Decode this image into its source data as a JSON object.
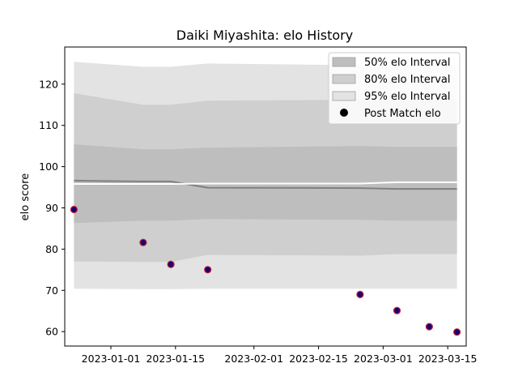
{
  "chart_data": {
    "type": "line",
    "title": "Daiki Miyashita: elo History",
    "xlabel": "",
    "ylabel": "elo score",
    "x_dates": [
      "2022-12-24",
      "2023-01-08",
      "2023-01-14",
      "2023-01-22",
      "2023-02-24",
      "2023-03-04",
      "2023-03-11",
      "2023-03-17"
    ],
    "xlim": [
      "2022-12-22",
      "2023-03-19"
    ],
    "ylim": [
      56.5,
      129
    ],
    "x_ticks": [
      "2023-01-01",
      "2023-01-15",
      "2023-02-01",
      "2023-02-15",
      "2023-03-01",
      "2023-03-15"
    ],
    "y_ticks": [
      60,
      70,
      80,
      90,
      100,
      110,
      120
    ],
    "bands": [
      {
        "name": "95% elo Interval",
        "color": "#e3e3e3",
        "lower": [
          70.4,
          70.3,
          70.3,
          70.4,
          70.4,
          70.4,
          70.4,
          70.4
        ],
        "upper": [
          125.4,
          124.2,
          124.2,
          125.0,
          124.6,
          124.6,
          124.6,
          124.6
        ]
      },
      {
        "name": "80% elo Interval",
        "color": "#cfcfcf",
        "lower": [
          77.0,
          76.9,
          76.9,
          78.6,
          78.4,
          78.8,
          78.8,
          78.8
        ],
        "upper": [
          117.8,
          115.0,
          115.0,
          116.0,
          116.2,
          116.2,
          116.2,
          116.2
        ]
      },
      {
        "name": "50% elo Interval",
        "color": "#bebebe",
        "lower": [
          86.3,
          86.9,
          86.9,
          87.3,
          87.1,
          86.9,
          86.9,
          86.9
        ],
        "upper": [
          105.4,
          104.2,
          104.2,
          104.6,
          105.0,
          104.8,
          104.8,
          104.8
        ]
      }
    ],
    "series": [
      {
        "values": [
          96.6,
          96.4,
          96.4,
          94.9,
          94.8,
          94.6,
          94.6,
          94.6
        ],
        "color": "#808080"
      },
      {
        "values": [
          95.8,
          95.8,
          95.8,
          95.9,
          95.9,
          96.2,
          96.2,
          96.2
        ],
        "color": "#ffffff"
      }
    ],
    "points": {
      "name": "Post Match elo",
      "values": [
        89.6,
        81.6,
        76.3,
        75.0,
        69.0,
        65.1,
        61.2,
        59.9
      ],
      "fill": "#1a0070",
      "edge": "#cc2233"
    },
    "legend": {
      "position": "top-right",
      "entries": [
        "50% elo Interval",
        "80% elo Interval",
        "95% elo Interval",
        "Post Match elo"
      ]
    }
  }
}
